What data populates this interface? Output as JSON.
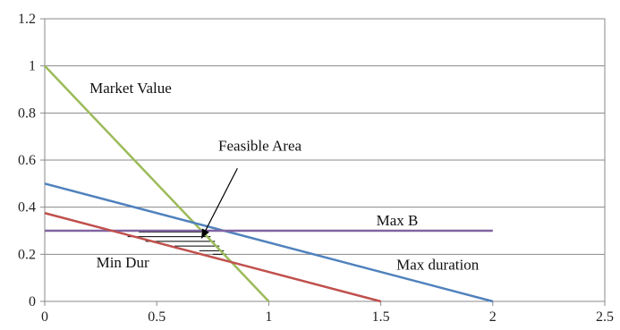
{
  "chart_data": {
    "type": "line",
    "title": "",
    "xlabel": "",
    "ylabel": "",
    "xlim": [
      0,
      2.5
    ],
    "ylim": [
      0,
      1.2
    ],
    "x_ticks": [
      "0",
      "0.5",
      "1",
      "1.5",
      "2",
      "2.5"
    ],
    "y_ticks": [
      "0",
      "0.2",
      "0.4",
      "0.6",
      "0.8",
      "1",
      "1.2"
    ],
    "grid": "horizontal",
    "legend": "none",
    "series": [
      {
        "color": "#9bbb59",
        "points": [
          [
            0,
            1.0
          ],
          [
            1.0,
            0.0
          ]
        ]
      },
      {
        "color": "#4f81bd",
        "points": [
          [
            0,
            0.5
          ],
          [
            2.0,
            0.0
          ]
        ]
      },
      {
        "color": "#8064a2",
        "points": [
          [
            0,
            0.3
          ],
          [
            2.0,
            0.3
          ]
        ]
      },
      {
        "color": "#c0504d",
        "points": [
          [
            0,
            0.375
          ],
          [
            1.5,
            0.0
          ]
        ]
      }
    ],
    "annotations": [
      {
        "id": "market-value",
        "text": "Market Value",
        "x": 0.2,
        "y": 0.885
      },
      {
        "id": "feasible-area",
        "text": "Feasible Area",
        "x": 0.775,
        "y": 0.64
      },
      {
        "id": "max-b",
        "text": "Max B",
        "x": 1.48,
        "y": 0.322
      },
      {
        "id": "min-dur",
        "text": "Min Dur",
        "x": 0.23,
        "y": 0.145
      },
      {
        "id": "max-duration",
        "text": "Max duration",
        "x": 1.57,
        "y": 0.135
      }
    ],
    "arrow": {
      "from": [
        0.86,
        0.565
      ],
      "to": [
        0.7,
        0.268
      ],
      "color": "#000000"
    },
    "feasible_region": {
      "polygon": [
        [
          0.5,
          0.25
        ],
        [
          0.7,
          0.3
        ],
        [
          0.7,
          0.3
        ],
        [
          0.8,
          0.2
        ],
        [
          0.8,
          0.2
        ],
        [
          0.5,
          0.25
        ]
      ],
      "hatch_y": [
        0.295,
        0.275,
        0.255,
        0.235,
        0.215,
        0.2
      ],
      "hatch_x_ranges": [
        [
          0.42,
          0.7
        ],
        [
          0.37,
          0.74
        ],
        [
          0.45,
          0.76
        ],
        [
          0.58,
          0.78
        ],
        [
          0.69,
          0.8
        ],
        [
          0.75,
          0.81
        ]
      ]
    }
  }
}
